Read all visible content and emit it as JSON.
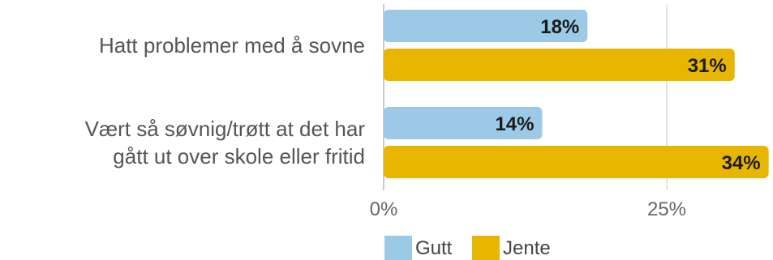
{
  "chart_data": {
    "type": "bar",
    "orientation": "horizontal",
    "categories": [
      [
        "Hatt problemer med å sovne"
      ],
      [
        "Vært så søvnig/trøtt at det har",
        "gått ut over skole eller fritid"
      ]
    ],
    "series": [
      {
        "name": "Gutt",
        "color": "#9ccae6",
        "values": [
          18,
          14
        ],
        "value_labels": [
          "18%",
          "14%"
        ]
      },
      {
        "name": "Jente",
        "color": "#e8b600",
        "values": [
          31,
          34
        ],
        "value_labels": [
          "31%",
          "34%"
        ]
      }
    ],
    "x_ticks": [
      0,
      25
    ],
    "x_tick_labels": [
      "0%",
      "25%"
    ],
    "xlim": [
      0,
      34
    ],
    "grid": true,
    "legend": "bottom"
  }
}
